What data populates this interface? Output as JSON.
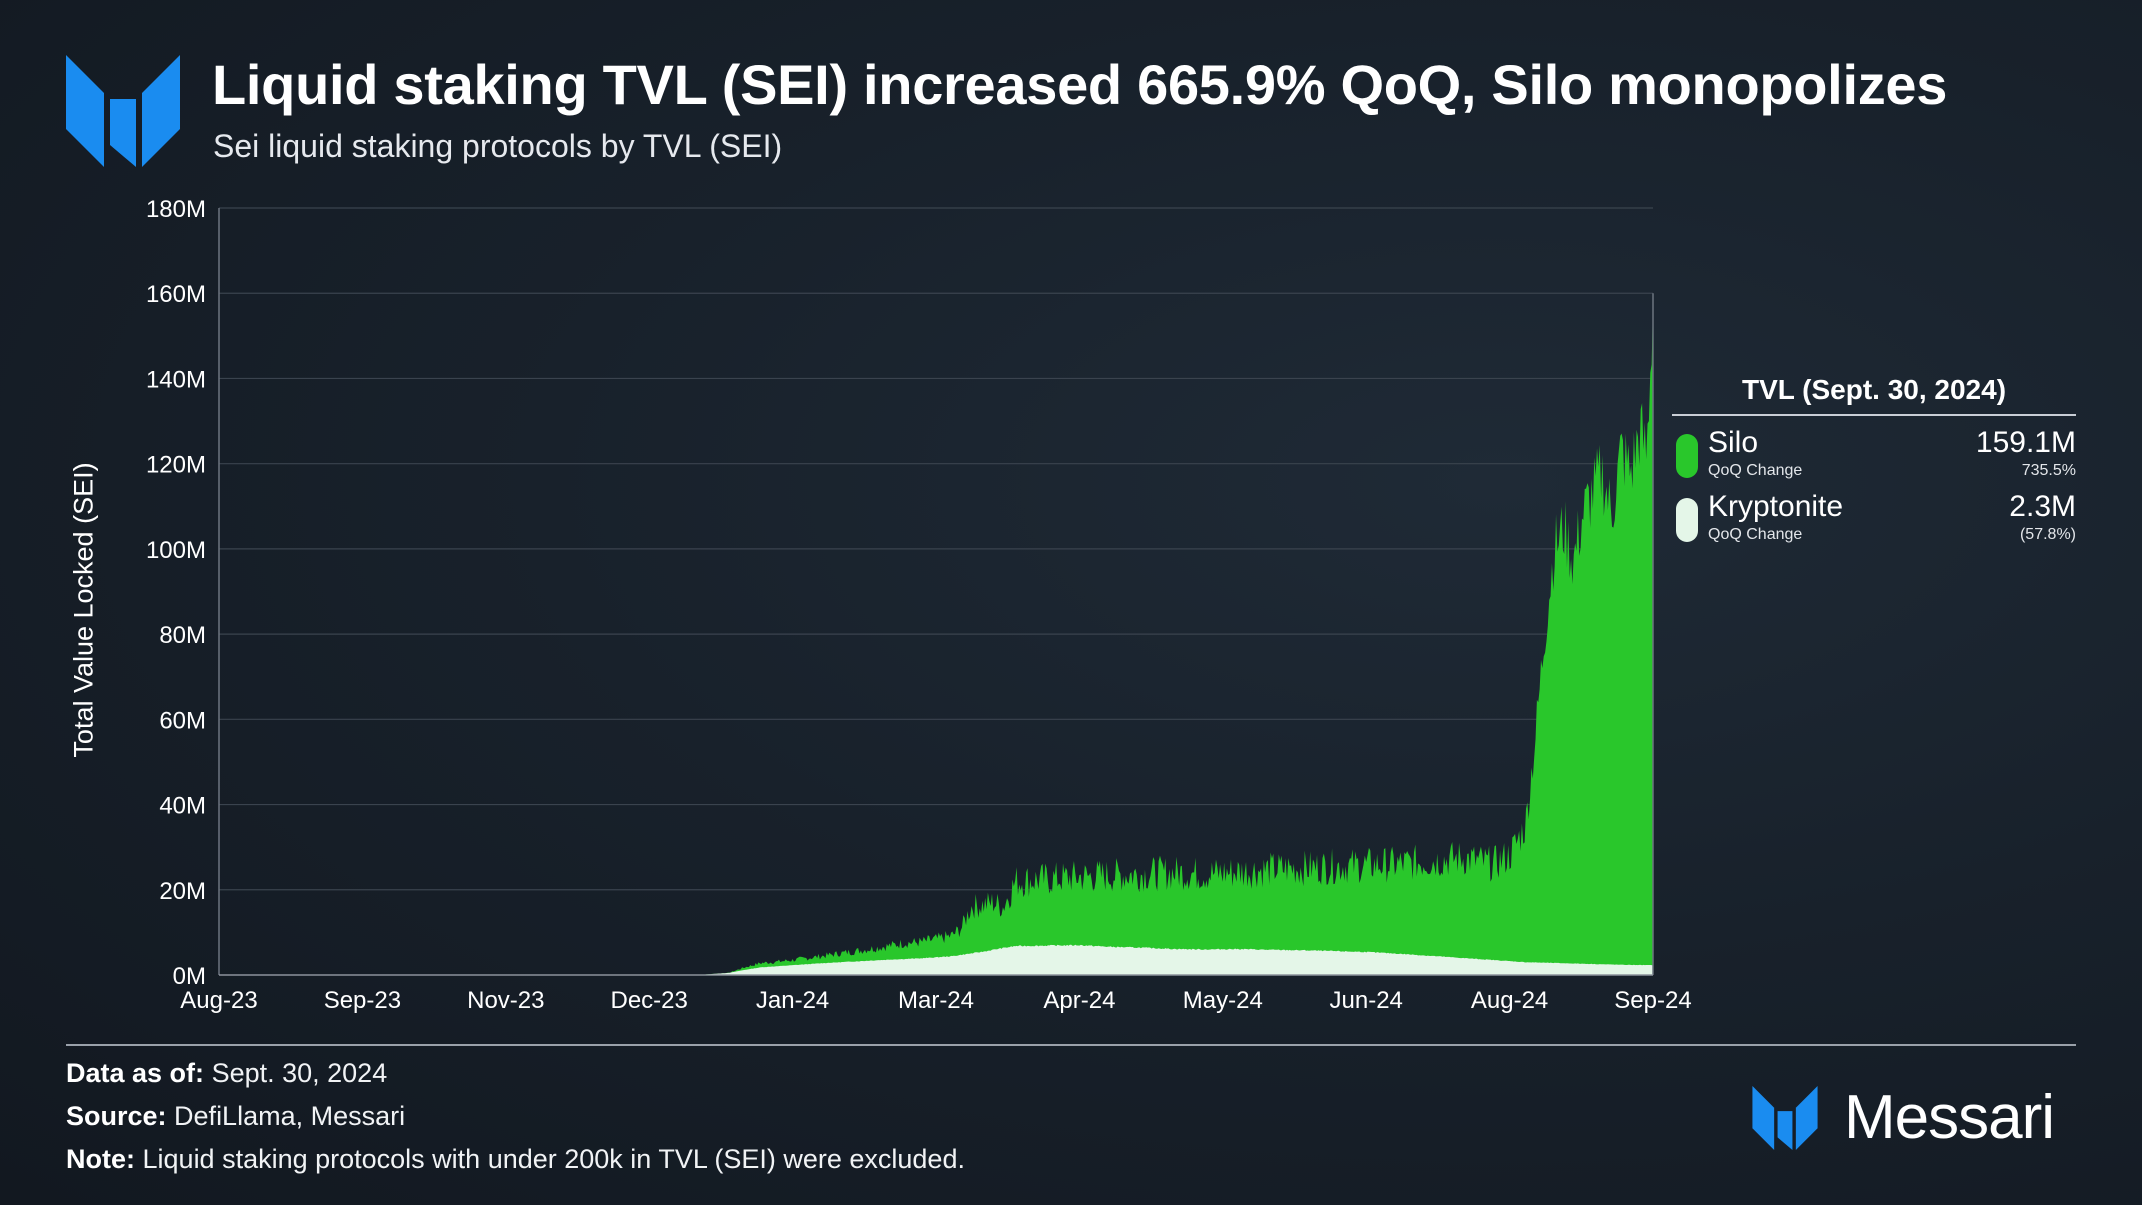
{
  "header": {
    "title": "Liquid staking TVL (SEI) increased 665.9% QoQ, Silo monopolizes",
    "subtitle": "Sei liquid staking protocols by TVL (SEI)"
  },
  "colors": {
    "silo": "#29c72b",
    "kryptonite": "#e4f6e8",
    "logo_blue": "#1a8cf0",
    "grid": "#3a434e"
  },
  "chart_data": {
    "type": "area",
    "stacked": true,
    "ylabel": "Total Value Locked (SEI)",
    "ylim": [
      0,
      180
    ],
    "y_unit": "M SEI",
    "y_ticks": [
      "0M",
      "20M",
      "40M",
      "60M",
      "80M",
      "100M",
      "120M",
      "140M",
      "160M",
      "180M"
    ],
    "x_ticks": [
      "Aug-23",
      "Sep-23",
      "Nov-23",
      "Dec-23",
      "Jan-24",
      "Mar-24",
      "Apr-24",
      "May-24",
      "Jun-24",
      "Aug-24",
      "Sep-24"
    ],
    "x_range": [
      "2023-08-01",
      "2024-09-30"
    ],
    "grid": true,
    "series": [
      {
        "name": "Kryptonite",
        "values_millions": [
          [
            15,
            0
          ],
          [
            16,
            0.5
          ],
          [
            16.5,
            1.2
          ],
          [
            17,
            1.8
          ],
          [
            18,
            2.3
          ],
          [
            19,
            2.8
          ],
          [
            20,
            3.2
          ],
          [
            21,
            3.6
          ],
          [
            22,
            3.9
          ],
          [
            23,
            4.4
          ],
          [
            24,
            5.5
          ],
          [
            24.5,
            6.2
          ],
          [
            25,
            6.8
          ],
          [
            26,
            6.9
          ],
          [
            27,
            7.0
          ],
          [
            28,
            6.6
          ],
          [
            29,
            6.4
          ],
          [
            30,
            6.1
          ],
          [
            31,
            6.0
          ],
          [
            32,
            6.1
          ],
          [
            33,
            5.9
          ],
          [
            34,
            5.8
          ],
          [
            35,
            5.6
          ],
          [
            36,
            5.4
          ],
          [
            37,
            5.0
          ],
          [
            38,
            4.5
          ],
          [
            39,
            4.0
          ],
          [
            40,
            3.5
          ],
          [
            41,
            3.0
          ],
          [
            42,
            2.8
          ],
          [
            43,
            2.6
          ],
          [
            44,
            2.4
          ],
          [
            45,
            2.3
          ]
        ]
      },
      {
        "name": "Silo",
        "values_millions": [
          [
            15,
            0
          ],
          [
            16,
            0.5
          ],
          [
            16.5,
            1.8
          ],
          [
            17,
            2.8
          ],
          [
            17.5,
            3.1
          ],
          [
            18,
            3.5
          ],
          [
            18.5,
            4.0
          ],
          [
            19,
            4.5
          ],
          [
            19.5,
            5.1
          ],
          [
            20,
            5.6
          ],
          [
            20.5,
            6.2
          ],
          [
            21,
            6.8
          ],
          [
            21.5,
            7.5
          ],
          [
            22,
            7.7
          ],
          [
            22.5,
            8.4
          ],
          [
            23,
            9.2
          ],
          [
            23.3,
            11
          ],
          [
            23.6,
            16
          ],
          [
            24,
            16.5
          ],
          [
            24.3,
            17
          ],
          [
            24.6,
            16
          ],
          [
            24.8,
            19
          ],
          [
            25,
            22
          ],
          [
            26,
            22.5
          ],
          [
            27,
            23
          ],
          [
            28,
            23.4
          ],
          [
            29,
            23.7
          ],
          [
            30,
            24
          ],
          [
            31,
            23.7
          ],
          [
            32,
            24.2
          ],
          [
            33,
            24.8
          ],
          [
            34,
            25.1
          ],
          [
            35,
            25.5
          ],
          [
            36,
            25.8
          ],
          [
            37,
            26
          ],
          [
            38,
            26.7
          ],
          [
            39,
            27.5
          ],
          [
            40,
            26
          ],
          [
            40.5,
            28
          ],
          [
            41,
            35
          ],
          [
            41.3,
            55
          ],
          [
            41.6,
            80
          ],
          [
            41.9,
            100
          ],
          [
            42.2,
            105
          ],
          [
            42.5,
            97
          ],
          [
            42.8,
            108
          ],
          [
            43.1,
            113
          ],
          [
            43.4,
            118
          ],
          [
            43.7,
            108
          ],
          [
            44,
            123
          ],
          [
            44.3,
            118
          ],
          [
            44.6,
            128
          ],
          [
            44.8,
            122
          ],
          [
            45,
            157.8
          ]
        ]
      }
    ],
    "note": "Silo series values are the cumulative top of the stacked area (millions SEI)"
  },
  "legend": {
    "title": "TVL (Sept. 30, 2024)",
    "items": [
      {
        "name": "Silo",
        "sub": "QoQ Change",
        "value": "159.1M",
        "change": "735.5%"
      },
      {
        "name": "Kryptonite",
        "sub": "QoQ Change",
        "value": "2.3M",
        "change": "(57.8%)"
      }
    ]
  },
  "footer": {
    "data_as_of_label": "Data as of:",
    "data_as_of_value": "Sept. 30, 2024",
    "source_label": "Source:",
    "source_value": "DefiLlama, Messari",
    "note_label": "Note:",
    "note_value": "Liquid staking protocols with under 200k in TVL (SEI) were excluded."
  },
  "brand": {
    "name": "Messari",
    "logo_icon": "messari-logo-icon"
  }
}
